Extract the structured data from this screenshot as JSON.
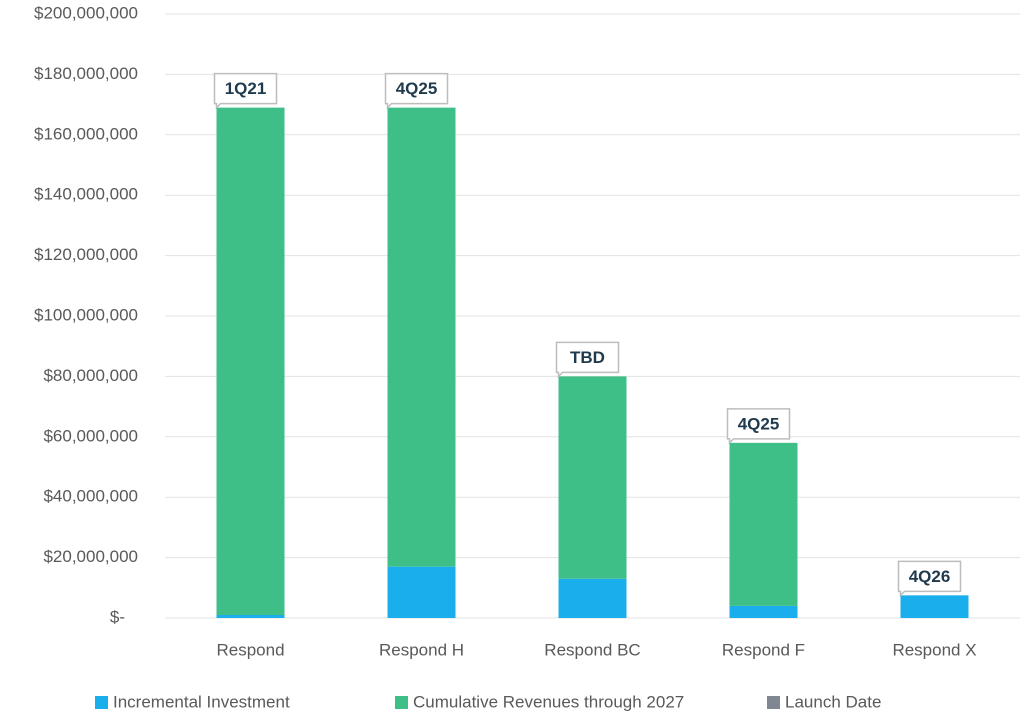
{
  "chart_data": {
    "type": "bar",
    "stacked": true,
    "categories": [
      "Respond",
      "Respond H",
      "Respond BC",
      "Respond F",
      "Respond X"
    ],
    "series": [
      {
        "name": "Incremental Investment",
        "color": "#1aaeec",
        "values": [
          1000000,
          17000000,
          13000000,
          4000000,
          7500000
        ]
      },
      {
        "name": "Cumulative Revenues through 2027",
        "color": "#3ebf87",
        "values": [
          168000000,
          152000000,
          67000000,
          54000000,
          0
        ]
      },
      {
        "name": "Launch Date",
        "color": "#7f8790",
        "labels": [
          "1Q21",
          "4Q25",
          "TBD",
          "4Q25",
          "4Q26"
        ]
      }
    ],
    "ylim": [
      0,
      200000000
    ],
    "yticks": [
      {
        "value": 0,
        "label": "$-"
      },
      {
        "value": 20000000,
        "label": "$20,000,000"
      },
      {
        "value": 40000000,
        "label": "$40,000,000"
      },
      {
        "value": 60000000,
        "label": "$60,000,000"
      },
      {
        "value": 80000000,
        "label": "$80,000,000"
      },
      {
        "value": 100000000,
        "label": "$100,000,000"
      },
      {
        "value": 120000000,
        "label": "$120,000,000"
      },
      {
        "value": 140000000,
        "label": "$140,000,000"
      },
      {
        "value": 160000000,
        "label": "$160,000,000"
      },
      {
        "value": 180000000,
        "label": "$180,000,000"
      },
      {
        "value": 200000000,
        "label": "$200,000,000"
      }
    ],
    "grid": true,
    "legend": "bottom"
  }
}
